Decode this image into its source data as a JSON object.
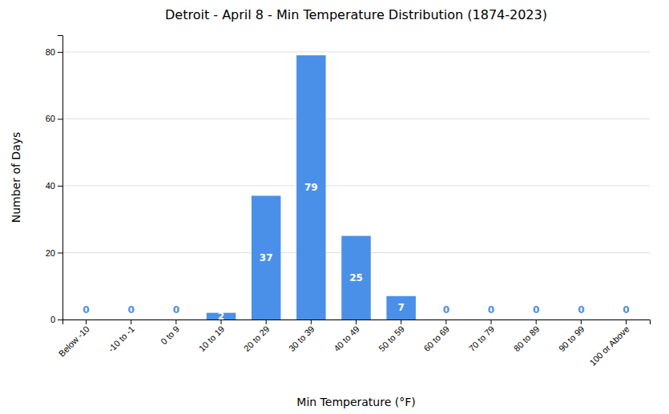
{
  "chart_data": {
    "type": "bar",
    "title": "Detroit - April 8 - Min Temperature Distribution (1874-2023)",
    "xlabel": "Min Temperature (°F)",
    "ylabel": "Number of Days",
    "categories": [
      "Below -10",
      "-10 to -1",
      "0 to 9",
      "10 to 19",
      "20 to 29",
      "30 to 39",
      "40 to 49",
      "50 to 59",
      "60 to 69",
      "70 to 79",
      "80 to 89",
      "90 to 99",
      "100 or Above"
    ],
    "values": [
      0,
      0,
      0,
      2,
      37,
      79,
      25,
      7,
      0,
      0,
      0,
      0,
      0
    ],
    "color": "#4a90e8",
    "ylim": [
      0,
      85
    ],
    "yticks": [
      0,
      20,
      40,
      60,
      80
    ],
    "grid": true,
    "data_labels": true
  }
}
